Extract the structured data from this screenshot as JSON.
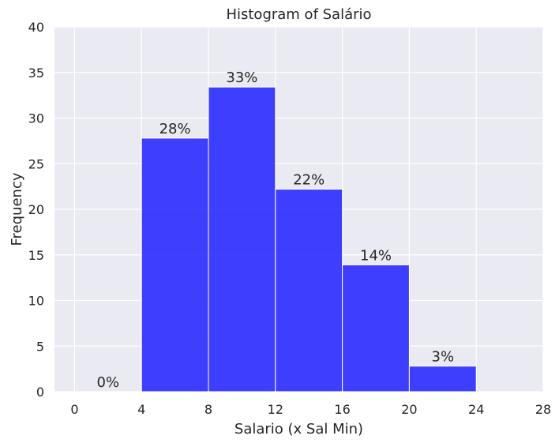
{
  "chart_data": {
    "type": "bar",
    "title": "Histogram of Salário",
    "xlabel": "Salario (x Sal Min)",
    "ylabel": "Frequency",
    "bins": [
      [
        0,
        4
      ],
      [
        4,
        8
      ],
      [
        8,
        12
      ],
      [
        12,
        16
      ],
      [
        16,
        20
      ],
      [
        20,
        24
      ]
    ],
    "values": [
      0,
      27.8,
      33.4,
      22.2,
      13.9,
      2.8
    ],
    "labels": [
      "0%",
      "28%",
      "33%",
      "22%",
      "14%",
      "3%"
    ],
    "xlim": [
      -1.2,
      28
    ],
    "ylim": [
      0,
      40
    ],
    "xticks": [
      0,
      4,
      8,
      12,
      16,
      20,
      24,
      28
    ],
    "xtick_labels": [
      "0",
      "4",
      "8",
      "12",
      "16",
      "20",
      "24",
      "28"
    ],
    "yticks": [
      0,
      5,
      10,
      15,
      20,
      25,
      30,
      35,
      40
    ],
    "ytick_labels": [
      "0",
      "5",
      "10",
      "15",
      "20",
      "25",
      "30",
      "35",
      "40"
    ],
    "grid": true,
    "colors": {
      "bar": "#2b2bff",
      "background": "#eaeaf2",
      "grid": "#ffffff"
    }
  }
}
